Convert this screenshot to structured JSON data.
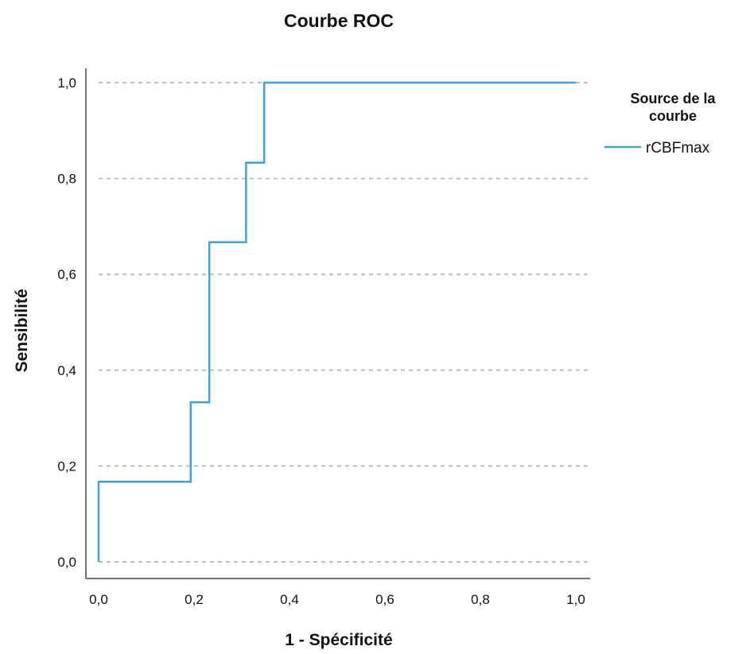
{
  "chart_data": {
    "type": "line",
    "title": "Courbe ROC",
    "xlabel": "1 - Spécificité",
    "ylabel": "Sensibilité",
    "xlim": [
      0,
      1
    ],
    "ylim": [
      0,
      1
    ],
    "x_ticks": [
      "0,0",
      "0,2",
      "0,4",
      "0,6",
      "0,8",
      "1,0"
    ],
    "y_ticks": [
      "0,0",
      "0,2",
      "0,4",
      "0,6",
      "0,8",
      "1,0"
    ],
    "grid": "horizontal-dashed",
    "legend": {
      "title_lines": [
        "Source de la",
        "courbe"
      ],
      "placement": "right"
    },
    "series": [
      {
        "name": "rCBFmax",
        "color": "#3ba3e2",
        "step": true,
        "x": [
          0.0,
          0.0,
          0.193,
          0.193,
          0.232,
          0.232,
          0.309,
          0.309,
          0.347,
          0.347,
          1.0
        ],
        "y": [
          0.0,
          0.167,
          0.167,
          0.333,
          0.333,
          0.667,
          0.667,
          0.833,
          0.833,
          1.0,
          1.0
        ]
      }
    ]
  },
  "colors": {
    "axis": "#444444",
    "grid": "#bdbdbd"
  }
}
